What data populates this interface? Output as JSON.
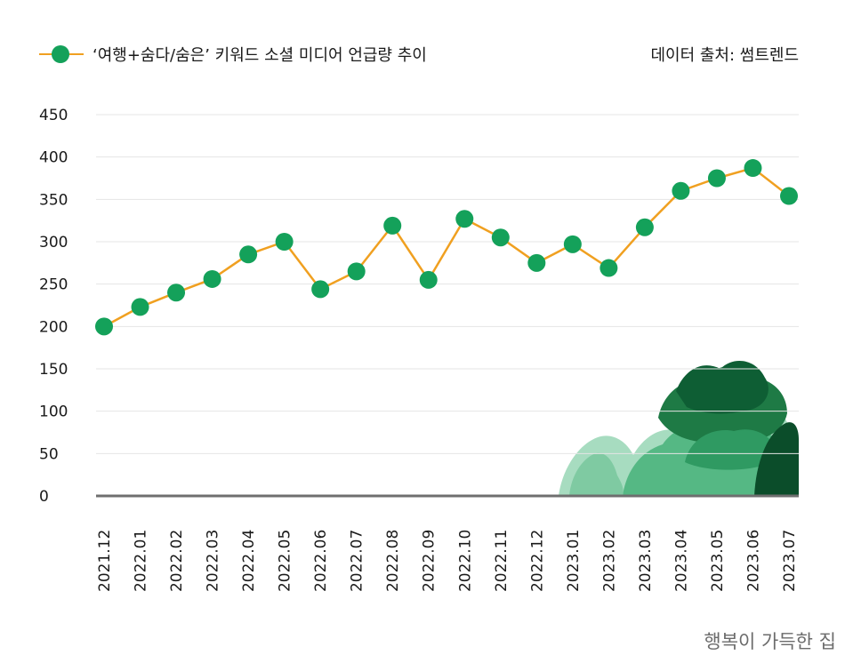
{
  "legend": {
    "label": "‘여행+숨다/숨은’ 키워드 소셜 미디어 언급량 추이"
  },
  "source": "데이터 출처: 썸트렌드",
  "brand": "행복이 가득한 집",
  "colors": {
    "line": "#f0a020",
    "marker": "#14a15a",
    "grid": "#e4e4e4",
    "baseline": "#6f6f6f"
  },
  "chart_data": {
    "type": "line",
    "categories": [
      "2021.12",
      "2022.01",
      "2022.02",
      "2022.03",
      "2022.04",
      "2022.05",
      "2022.06",
      "2022.07",
      "2022.08",
      "2022.09",
      "2022.10",
      "2022.11",
      "2022.12",
      "2023.01",
      "2023.02",
      "2023.03",
      "2023.04",
      "2023.05",
      "2023.06",
      "2023.07"
    ],
    "series": [
      {
        "values": [
          200,
          223,
          240,
          256,
          285,
          300,
          244,
          265,
          319,
          255,
          327,
          305,
          275,
          297,
          269,
          317,
          360,
          375,
          387,
          354
        ]
      }
    ],
    "ylim": [
      0,
      450
    ],
    "yticks": [
      0,
      50,
      100,
      150,
      200,
      250,
      300,
      350,
      400,
      450
    ],
    "grid": true,
    "legend_position": "top-left"
  }
}
